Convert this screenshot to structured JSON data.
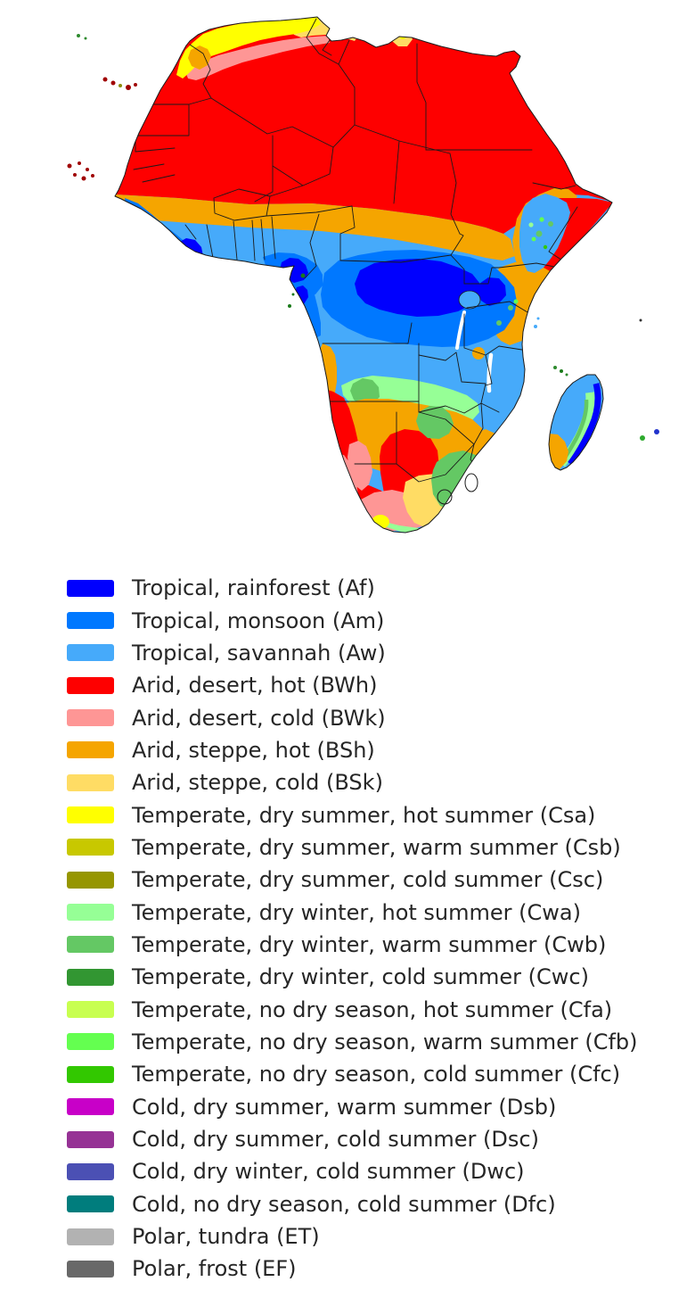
{
  "legend": {
    "items": [
      {
        "code": "Af",
        "label": "Tropical, rainforest (Af)",
        "color": "#0000FE"
      },
      {
        "code": "Am",
        "label": "Tropical, monsoon (Am)",
        "color": "#0078FF"
      },
      {
        "code": "Aw",
        "label": "Tropical, savannah (Aw)",
        "color": "#46AAFA"
      },
      {
        "code": "BWh",
        "label": "Arid, desert, hot (BWh)",
        "color": "#FE0000"
      },
      {
        "code": "BWk",
        "label": "Arid, desert, cold (BWk)",
        "color": "#FE9695"
      },
      {
        "code": "BSh",
        "label": "Arid, steppe, hot (BSh)",
        "color": "#F5A500"
      },
      {
        "code": "BSk",
        "label": "Arid, steppe, cold (BSk)",
        "color": "#FFDC64"
      },
      {
        "code": "Csa",
        "label": "Temperate, dry summer, hot summer (Csa)",
        "color": "#FFFF00"
      },
      {
        "code": "Csb",
        "label": "Temperate, dry summer, warm summer (Csb)",
        "color": "#C8C800"
      },
      {
        "code": "Csc",
        "label": "Temperate, dry summer, cold summer (Csc)",
        "color": "#969600"
      },
      {
        "code": "Cwa",
        "label": "Temperate, dry winter, hot summer (Cwa)",
        "color": "#96FF96"
      },
      {
        "code": "Cwb",
        "label": "Temperate, dry winter, warm summer (Cwb)",
        "color": "#64C864"
      },
      {
        "code": "Cwc",
        "label": "Temperate, dry winter, cold summer (Cwc)",
        "color": "#329632"
      },
      {
        "code": "Cfa",
        "label": "Temperate, no dry season, hot summer (Cfa)",
        "color": "#C8FF50"
      },
      {
        "code": "Cfb",
        "label": "Temperate, no dry season, warm summer (Cfb)",
        "color": "#64FF50"
      },
      {
        "code": "Cfc",
        "label": "Temperate, no dry season, cold summer (Cfc)",
        "color": "#32C800"
      },
      {
        "code": "Dsb",
        "label": "Cold, dry summer, warm summer (Dsb)",
        "color": "#C800C8"
      },
      {
        "code": "Dsc",
        "label": "Cold, dry summer, cold summer (Dsc)",
        "color": "#963295"
      },
      {
        "code": "Dwc",
        "label": "Cold, dry winter, cold summer (Dwc)",
        "color": "#4B50B4"
      },
      {
        "code": "Dfc",
        "label": "Cold, no dry season, cold summer (Dfc)",
        "color": "#007D7D"
      },
      {
        "code": "ET",
        "label": "Polar, tundra (ET)",
        "color": "#B2B2B2"
      },
      {
        "code": "EF",
        "label": "Polar, frost (EF)",
        "color": "#686868"
      }
    ]
  },
  "map": {
    "background": "#FFFFFF",
    "coastline_color": "#1A1A1A",
    "border_color": "#1A1A1A",
    "label_color": "#262626"
  }
}
